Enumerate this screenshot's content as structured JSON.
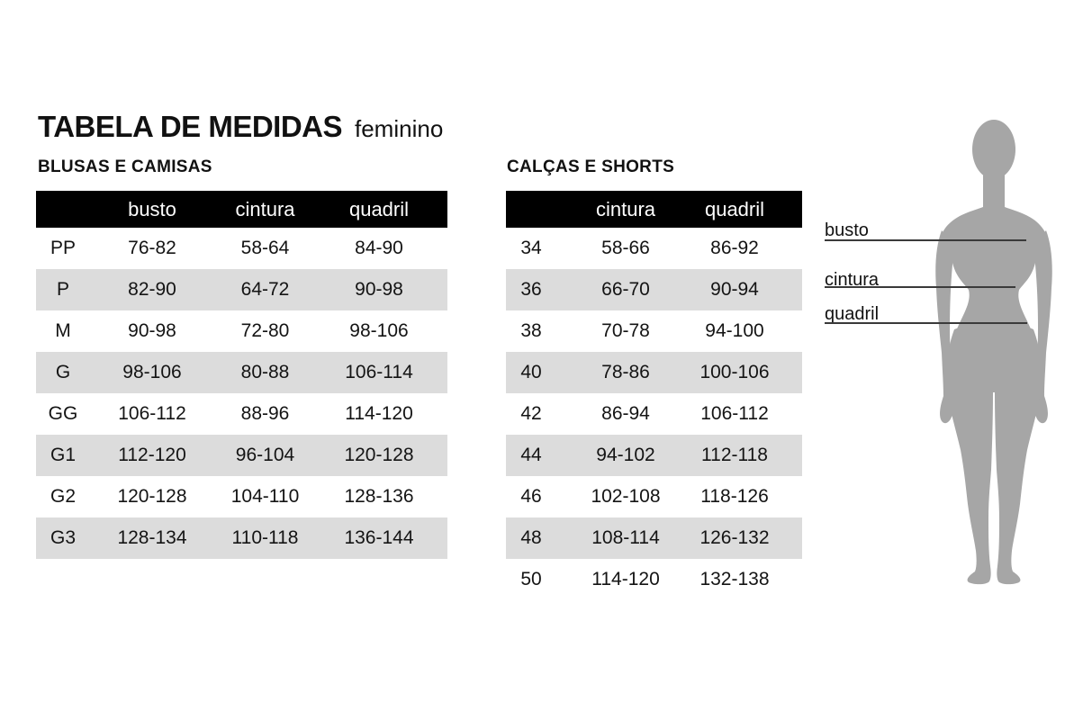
{
  "title": {
    "main": "TABELA DE MEDIDAS",
    "qualifier": "feminino"
  },
  "colors": {
    "background": "#ffffff",
    "table_header_bg": "#000000",
    "table_header_text": "#ffffff",
    "row_alt_bg": "#dcdcdc",
    "text": "#141414",
    "silhouette": "#a6a6a6",
    "measure_line": "#3a3a3a"
  },
  "tables": [
    {
      "section": "BLUSAS E CAMISAS",
      "columns": [
        "",
        "busto",
        "cintura",
        "quadril"
      ],
      "rows": [
        [
          "PP",
          "76-82",
          "58-64",
          "84-90"
        ],
        [
          "P",
          "82-90",
          "64-72",
          "90-98"
        ],
        [
          "M",
          "90-98",
          "72-80",
          "98-106"
        ],
        [
          "G",
          "98-106",
          "80-88",
          "106-114"
        ],
        [
          "GG",
          "106-112",
          "88-96",
          "114-120"
        ],
        [
          "G1",
          "112-120",
          "96-104",
          "120-128"
        ],
        [
          "G2",
          "120-128",
          "104-110",
          "128-136"
        ],
        [
          "G3",
          "128-134",
          "110-118",
          "136-144"
        ]
      ]
    },
    {
      "section": "CALÇAS E SHORTS",
      "columns": [
        "",
        "cintura",
        "quadril"
      ],
      "rows": [
        [
          "34",
          "58-66",
          "86-92"
        ],
        [
          "36",
          "66-70",
          "90-94"
        ],
        [
          "38",
          "70-78",
          "94-100"
        ],
        [
          "40",
          "78-86",
          "100-106"
        ],
        [
          "42",
          "86-94",
          "106-112"
        ],
        [
          "44",
          "94-102",
          "112-118"
        ],
        [
          "46",
          "102-108",
          "118-126"
        ],
        [
          "48",
          "108-114",
          "126-132"
        ],
        [
          "50",
          "114-120",
          "132-138"
        ]
      ]
    }
  ],
  "figure": {
    "type": "female-body-silhouette",
    "labels": [
      {
        "text": "busto"
      },
      {
        "text": "cintura"
      },
      {
        "text": "quadril"
      }
    ]
  }
}
